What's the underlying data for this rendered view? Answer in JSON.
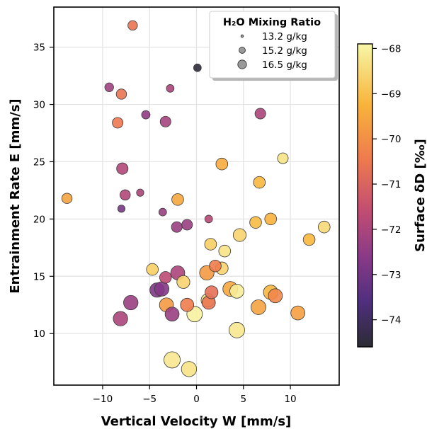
{
  "chart_data": {
    "type": "scatter",
    "xlabel": "Vertical Velocity W [mm/s]",
    "ylabel": "Entrainment Rate E [mm/s]",
    "xlim": [
      -15.2,
      15.2
    ],
    "ylim": [
      5.5,
      38.5
    ],
    "xticks": [
      -10,
      -5,
      0,
      5,
      10
    ],
    "xtick_labels": [
      "−10",
      "−5",
      "0",
      "5",
      "10"
    ],
    "yticks": [
      10,
      15,
      20,
      25,
      30,
      35
    ],
    "ytick_labels": [
      "10",
      "15",
      "20",
      "25",
      "30",
      "35"
    ],
    "grid": true,
    "size_legend": {
      "title": "H₂O Mixing Ratio",
      "placement": "top-right",
      "entries": [
        {
          "label": "13.2 g/kg",
          "value": 13.2
        },
        {
          "label": "15.2 g/kg",
          "value": 15.2
        },
        {
          "label": "16.5 g/kg",
          "value": 16.5
        }
      ]
    },
    "colorbar": {
      "label": "Surface δD [‰]",
      "range": [
        -74.6,
        -67.9
      ],
      "ticks": [
        -68,
        -69,
        -70,
        -71,
        -72,
        -73,
        -74
      ],
      "tick_labels": [
        "−68",
        "−69",
        "−70",
        "−71",
        "−72",
        "−73",
        "−74"
      ],
      "colormap": "inferno-like",
      "colors": [
        "#2b2b33",
        "#4f2f7e",
        "#8a3a87",
        "#c24d72",
        "#ef7a4e",
        "#f8b43a",
        "#f7f7a8"
      ]
    },
    "points": [
      {
        "x": -6.8,
        "y": 36.9,
        "q": 15.0,
        "d": -70.6
      },
      {
        "x": 0.1,
        "y": 33.2,
        "q": 14.5,
        "d": -74.5
      },
      {
        "x": -9.3,
        "y": 31.5,
        "q": 14.8,
        "d": -72.2
      },
      {
        "x": -2.8,
        "y": 31.4,
        "q": 14.5,
        "d": -72.0
      },
      {
        "x": -8.0,
        "y": 30.9,
        "q": 15.2,
        "d": -70.6
      },
      {
        "x": -5.4,
        "y": 29.1,
        "q": 14.7,
        "d": -72.5
      },
      {
        "x": 6.8,
        "y": 29.2,
        "q": 15.3,
        "d": -72.0
      },
      {
        "x": -8.4,
        "y": 28.4,
        "q": 15.3,
        "d": -70.5
      },
      {
        "x": -3.3,
        "y": 28.5,
        "q": 15.3,
        "d": -72.1
      },
      {
        "x": 9.2,
        "y": 25.3,
        "q": 15.3,
        "d": -68.3
      },
      {
        "x": 2.7,
        "y": 24.8,
        "q": 15.6,
        "d": -69.4
      },
      {
        "x": -7.9,
        "y": 24.4,
        "q": 15.5,
        "d": -71.9
      },
      {
        "x": 6.7,
        "y": 23.2,
        "q": 15.6,
        "d": -69.2
      },
      {
        "x": -7.6,
        "y": 22.1,
        "q": 15.2,
        "d": -71.9
      },
      {
        "x": -6.0,
        "y": 22.3,
        "q": 14.4,
        "d": -72.0
      },
      {
        "x": -13.8,
        "y": 21.8,
        "q": 15.2,
        "d": -69.6
      },
      {
        "x": -2.0,
        "y": 21.7,
        "q": 15.6,
        "d": -69.5
      },
      {
        "x": -8.0,
        "y": 20.9,
        "q": 14.4,
        "d": -72.9
      },
      {
        "x": -3.6,
        "y": 20.6,
        "q": 14.5,
        "d": -72.3
      },
      {
        "x": 1.3,
        "y": 20.0,
        "q": 14.5,
        "d": -71.8
      },
      {
        "x": 7.9,
        "y": 20.0,
        "q": 15.6,
        "d": -69.3
      },
      {
        "x": 6.3,
        "y": 19.7,
        "q": 15.6,
        "d": -69.1
      },
      {
        "x": -2.1,
        "y": 19.3,
        "q": 15.3,
        "d": -72.3
      },
      {
        "x": -1.0,
        "y": 19.5,
        "q": 15.3,
        "d": -72.3
      },
      {
        "x": 13.6,
        "y": 19.3,
        "q": 15.6,
        "d": -68.5
      },
      {
        "x": 4.6,
        "y": 18.6,
        "q": 15.9,
        "d": -68.6
      },
      {
        "x": 12.0,
        "y": 18.2,
        "q": 15.6,
        "d": -69.2
      },
      {
        "x": 1.5,
        "y": 17.8,
        "q": 15.6,
        "d": -68.7
      },
      {
        "x": 3.0,
        "y": 17.2,
        "q": 15.6,
        "d": -68.3
      },
      {
        "x": 2.0,
        "y": 15.9,
        "q": 15.6,
        "d": -70.4
      },
      {
        "x": -4.7,
        "y": 15.6,
        "q": 15.6,
        "d": -68.7
      },
      {
        "x": 2.7,
        "y": 15.7,
        "q": 15.8,
        "d": -68.6
      },
      {
        "x": 1.1,
        "y": 15.3,
        "q": 16.3,
        "d": -69.8
      },
      {
        "x": -2.0,
        "y": 15.3,
        "q": 16.2,
        "d": -72.0
      },
      {
        "x": -3.3,
        "y": 14.9,
        "q": 15.6,
        "d": -71.7
      },
      {
        "x": -1.4,
        "y": 14.5,
        "q": 15.9,
        "d": -68.6
      },
      {
        "x": -4.2,
        "y": 13.8,
        "q": 16.3,
        "d": -72.8
      },
      {
        "x": -3.7,
        "y": 13.9,
        "q": 16.3,
        "d": -72.7
      },
      {
        "x": 3.6,
        "y": 13.9,
        "q": 16.4,
        "d": -69.5
      },
      {
        "x": 4.3,
        "y": 13.7,
        "q": 16.2,
        "d": -68.1
      },
      {
        "x": 1.6,
        "y": 13.6,
        "q": 15.9,
        "d": -70.7
      },
      {
        "x": 7.9,
        "y": 13.6,
        "q": 16.3,
        "d": -69.2
      },
      {
        "x": 8.4,
        "y": 13.3,
        "q": 16.2,
        "d": -70.2
      },
      {
        "x": 1.2,
        "y": 12.9,
        "q": 16.0,
        "d": -68.3
      },
      {
        "x": 1.3,
        "y": 12.7,
        "q": 16.0,
        "d": -70.6
      },
      {
        "x": -7.0,
        "y": 12.7,
        "q": 16.3,
        "d": -72.3
      },
      {
        "x": -3.2,
        "y": 12.5,
        "q": 16.2,
        "d": -69.8
      },
      {
        "x": -1.0,
        "y": 12.5,
        "q": 16.0,
        "d": -70.4
      },
      {
        "x": 6.6,
        "y": 12.3,
        "q": 16.4,
        "d": -69.6
      },
      {
        "x": 10.8,
        "y": 11.8,
        "q": 16.2,
        "d": -69.7
      },
      {
        "x": -2.6,
        "y": 11.7,
        "q": 16.2,
        "d": -72.3
      },
      {
        "x": -0.2,
        "y": 11.7,
        "q": 16.6,
        "d": -68.0
      },
      {
        "x": -8.1,
        "y": 11.3,
        "q": 16.3,
        "d": -72.0
      },
      {
        "x": 4.3,
        "y": 10.3,
        "q": 16.6,
        "d": -68.2
      },
      {
        "x": -2.6,
        "y": 7.7,
        "q": 16.8,
        "d": -68.2
      },
      {
        "x": -0.8,
        "y": 6.9,
        "q": 16.5,
        "d": -68.3
      }
    ]
  }
}
